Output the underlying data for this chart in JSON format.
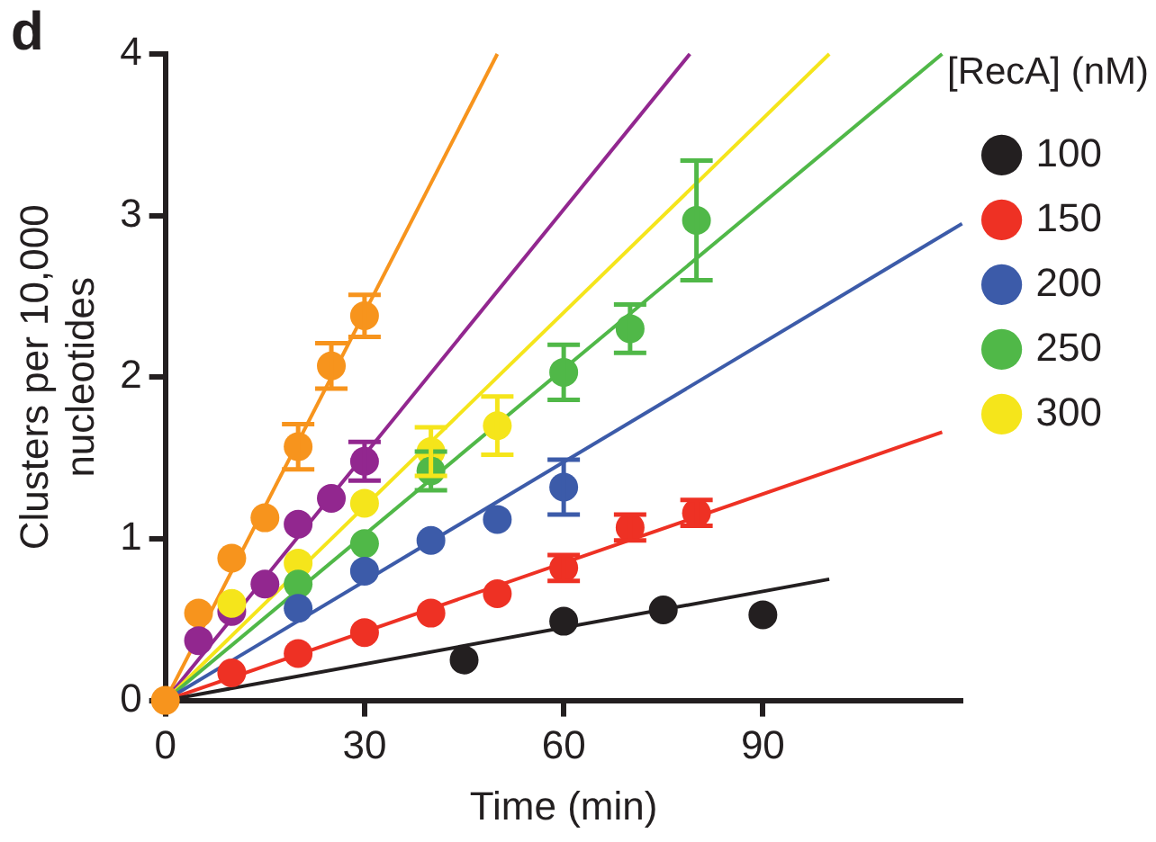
{
  "chart_data": {
    "type": "scatter",
    "xlabel": "Time (min)",
    "ylabel": "Clusters per 10,000\nnucleotides",
    "legend_title": "[RecA] (nM)",
    "annotations": [
      "d"
    ],
    "xlim": [
      0,
      120
    ],
    "xticks": [
      0,
      30,
      60,
      90
    ],
    "ylim": [
      0,
      4
    ],
    "yticks": [
      0,
      1,
      2,
      3,
      4
    ],
    "grid": false,
    "legend": "top right",
    "marker": "circle",
    "series": [
      {
        "type": "line",
        "marker": "none",
        "color": "#231f20",
        "x": [
          0,
          100
        ],
        "values": [
          0,
          0.75
        ]
      },
      {
        "type": "line",
        "marker": "none",
        "color": "#ee3124",
        "x": [
          0,
          117
        ],
        "values": [
          0,
          1.66
        ]
      },
      {
        "type": "line",
        "marker": "none",
        "color": "#3c5ba9",
        "x": [
          0,
          120
        ],
        "values": [
          0,
          2.95
        ]
      },
      {
        "type": "line",
        "marker": "none",
        "color": "#50b848",
        "x": [
          0,
          117
        ],
        "values": [
          0,
          4
        ]
      },
      {
        "type": "line",
        "marker": "none",
        "color": "#f5e51b",
        "x": [
          0,
          100
        ],
        "values": [
          0,
          4
        ]
      },
      {
        "type": "line",
        "marker": "none",
        "color": "#92278f",
        "x": [
          0,
          79
        ],
        "values": [
          0,
          4
        ]
      },
      {
        "type": "line",
        "marker": "none",
        "color": "#f7941d",
        "x": [
          0,
          50
        ],
        "values": [
          0,
          4
        ]
      },
      {
        "name": "100",
        "color": "#231f20",
        "x": [
          45,
          60,
          75,
          90
        ],
        "values": [
          0.25,
          0.49,
          0.56,
          0.53
        ]
      },
      {
        "name": "150",
        "color": "#ee3124",
        "x": [
          10,
          20,
          30,
          40,
          50,
          60,
          70,
          80
        ],
        "values": [
          0.17,
          0.29,
          0.42,
          0.54,
          0.66,
          0.82,
          1.07,
          1.16
        ],
        "errors": [
          null,
          null,
          null,
          null,
          null,
          0.08,
          0.08,
          0.08
        ]
      },
      {
        "name": "200",
        "color": "#3c5ba9",
        "x": [
          20,
          30,
          40,
          50,
          60
        ],
        "values": [
          0.57,
          0.8,
          0.99,
          1.12,
          1.32
        ],
        "errors": [
          null,
          null,
          null,
          null,
          0.17
        ]
      },
      {
        "name": "250",
        "color": "#50b848",
        "x": [
          20,
          30,
          40,
          60,
          70,
          80
        ],
        "values": [
          0.72,
          0.97,
          1.42,
          2.03,
          2.3,
          2.97
        ],
        "errors": [
          null,
          null,
          0.12,
          0.17,
          0.15,
          0.37
        ]
      },
      {
        "name": "300",
        "color": "#f5e51b",
        "x": [
          10,
          20,
          30,
          40,
          50
        ],
        "values": [
          0.6,
          0.85,
          1.22,
          1.54,
          1.7
        ],
        "errors": [
          null,
          null,
          null,
          0.15,
          0.18
        ]
      },
      {
        "color": "#92278f",
        "x": [
          5,
          10,
          15,
          20,
          25,
          30
        ],
        "values": [
          0.37,
          0.55,
          0.72,
          1.09,
          1.25,
          1.48
        ],
        "errors": [
          null,
          null,
          null,
          null,
          null,
          0.12
        ]
      },
      {
        "color": "#f7941d",
        "x": [
          0,
          5,
          10,
          15,
          20,
          25,
          30
        ],
        "values": [
          0,
          0.54,
          0.88,
          1.13,
          1.57,
          2.07,
          2.38
        ],
        "errors": [
          null,
          null,
          null,
          null,
          0.14,
          0.14,
          0.13
        ]
      }
    ]
  }
}
